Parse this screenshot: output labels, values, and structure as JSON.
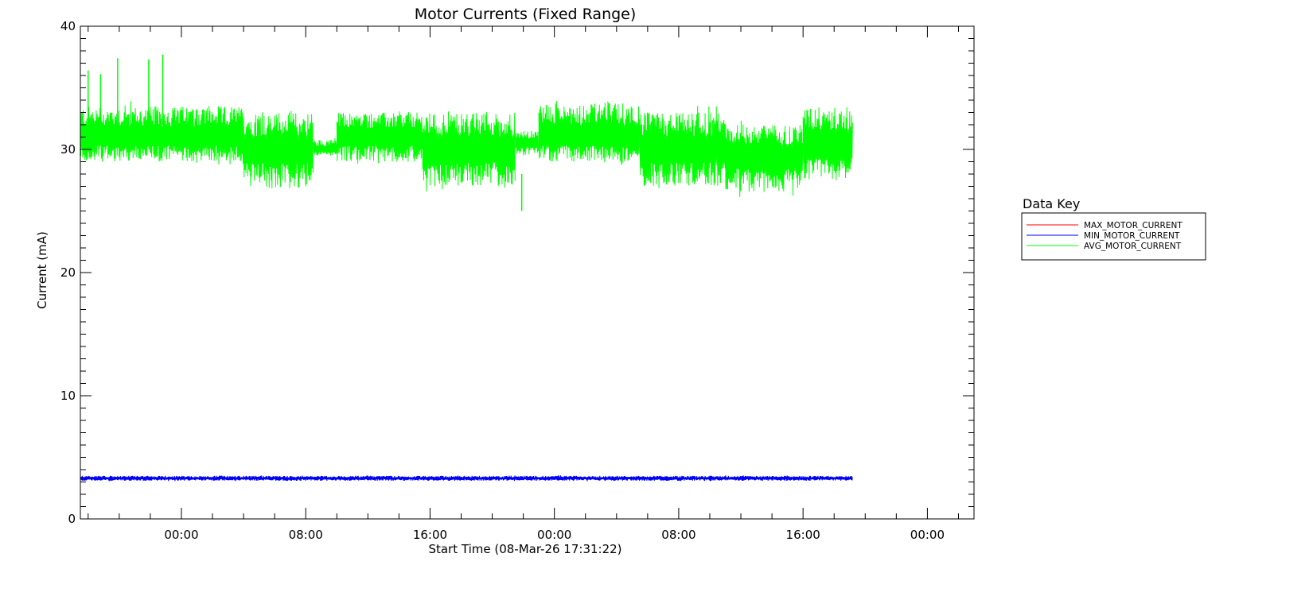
{
  "chart_data": {
    "type": "line",
    "title": "Motor Currents (Fixed Range)",
    "xlabel": "Start Time (08-Mar-26 17:31:22)",
    "ylabel": "Current (mA)",
    "ylim": [
      0,
      40
    ],
    "y_major_ticks": [
      0,
      10,
      20,
      30,
      40
    ],
    "y_minor_step": 1,
    "xlim_hours": [
      -6.5,
      51
    ],
    "x_tick_labels": [
      "00:00",
      "08:00",
      "16:00",
      "00:00",
      "08:00",
      "16:00",
      "00:00"
    ],
    "x_tick_hours": [
      0,
      8,
      16,
      24,
      32,
      40,
      48
    ],
    "x_minor_step_hours": 2,
    "data_range_hours": [
      -6.5,
      43.2
    ],
    "grid": false,
    "legend": {
      "title": "Data Key",
      "placement": "right-outside",
      "entries": [
        {
          "name": "MAX_MOTOR_CURRENT",
          "color": "#ff0000"
        },
        {
          "name": "MIN_MOTOR_CURRENT",
          "color": "#0000ff"
        },
        {
          "name": "AVG_MOTOR_CURRENT",
          "color": "#00ff00"
        }
      ]
    },
    "series": [
      {
        "name": "AVG_MOTOR_CURRENT",
        "color": "#00ff00",
        "segments": [
          {
            "x": [
              -6.5,
              4.0
            ],
            "low": 29.0,
            "high": 33.5,
            "mid": 31.0
          },
          {
            "x": [
              4.0,
              8.5
            ],
            "low": 26.8,
            "high": 33.0,
            "mid": 30.0
          },
          {
            "x": [
              8.5,
              10.0
            ],
            "low": 29.5,
            "high": 30.8,
            "mid": 30.0
          },
          {
            "x": [
              10.0,
              15.5
            ],
            "low": 29.0,
            "high": 33.0,
            "mid": 31.0
          },
          {
            "x": [
              15.5,
              21.5
            ],
            "low": 27.0,
            "high": 33.0,
            "mid": 30.0
          },
          {
            "x": [
              21.5,
              23.0
            ],
            "low": 29.5,
            "high": 31.5,
            "mid": 30.5
          },
          {
            "x": [
              23.0,
              29.5
            ],
            "low": 29.0,
            "high": 33.8,
            "mid": 31.0
          },
          {
            "x": [
              29.5,
              35.0
            ],
            "low": 27.0,
            "high": 33.0,
            "mid": 30.0
          },
          {
            "x": [
              35.0,
              40.0
            ],
            "low": 26.5,
            "high": 32.0,
            "mid": 29.5
          },
          {
            "x": [
              40.0,
              43.2
            ],
            "low": 27.5,
            "high": 33.5,
            "mid": 30.5
          }
        ],
        "spikes": [
          {
            "x": -6.0,
            "y": 36.4
          },
          {
            "x": -5.2,
            "y": 36.1
          },
          {
            "x": -4.1,
            "y": 37.4
          },
          {
            "x": -2.1,
            "y": 37.3
          },
          {
            "x": -1.2,
            "y": 37.7
          },
          {
            "x": 21.9,
            "y": 25.0
          }
        ]
      },
      {
        "name": "MIN_MOTOR_CURRENT",
        "color": "#0000ff",
        "x": [
          -6.5,
          43.2
        ],
        "low": 3.1,
        "high": 3.5,
        "mid": 3.3
      }
    ]
  }
}
